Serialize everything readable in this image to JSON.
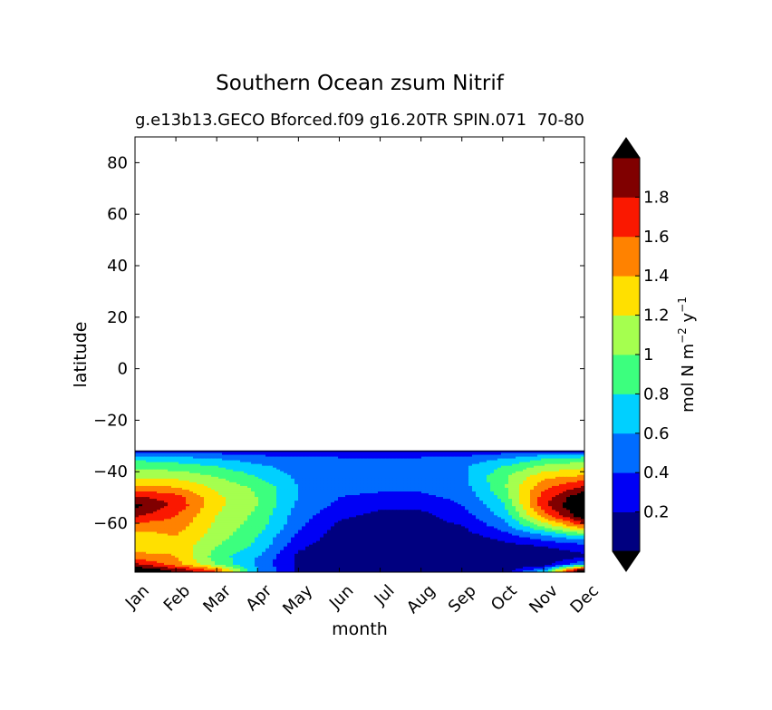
{
  "chart_data": {
    "type": "contourf",
    "title": "Southern Ocean zsum Nitrif",
    "subtitle_left": "g.e13b13.GECO Bforced.f09 g16.20TR SPIN.071",
    "subtitle_right": "70-80",
    "xlabel": "month",
    "ylabel": "latitude",
    "x_categories": [
      "Jan",
      "Feb",
      "Mar",
      "Apr",
      "May",
      "Jun",
      "Jul",
      "Aug",
      "Sep",
      "Oct",
      "Nov",
      "Dec"
    ],
    "xlim": [
      0,
      11
    ],
    "ylim": [
      -79,
      90
    ],
    "y_ticks": [
      80,
      60,
      40,
      20,
      0,
      -20,
      -40,
      -60
    ],
    "y_tick_labels": [
      "80",
      "60",
      "40",
      "20",
      "0",
      "−20",
      "−40",
      "−60"
    ],
    "data_lat_range": [
      -79,
      -32
    ],
    "colorbar": {
      "label": "mol N m",
      "label_exp1": "−2",
      "label_mid": " y",
      "label_exp2": "−1",
      "levels": [
        0,
        0.2,
        0.4,
        0.6,
        0.8,
        1.0,
        1.2,
        1.4,
        1.6,
        1.8,
        2.0
      ],
      "tick_values": [
        0.2,
        0.4,
        0.6,
        0.8,
        1.0,
        1.2,
        1.4,
        1.6,
        1.8
      ],
      "tick_labels": [
        "0.2",
        "0.4",
        "0.6",
        "0.8",
        "1",
        "1.2",
        "1.4",
        "1.6",
        "1.8"
      ],
      "colors": [
        "#000080",
        "#0000f5",
        "#006cff",
        "#00d0ff",
        "#3cff7e",
        "#a5ff4f",
        "#ffe000",
        "#ff8200",
        "#fa1800",
        "#800000"
      ],
      "extend_low_color": "#000000",
      "extend_high_color": "#000000"
    },
    "field": {
      "description": "zonal-mean Nitrif value (mol N m-2 y-1) per month (columns Jan..Dec) per latitude (rows)",
      "lat": [
        -32,
        -33,
        -35,
        -38,
        -42,
        -46,
        -50,
        -53,
        -57,
        -61,
        -65,
        -69,
        -73,
        -76,
        -78,
        -79
      ],
      "values": [
        [
          0.3,
          0.3,
          0.3,
          0.3,
          0.3,
          0.3,
          0.3,
          0.3,
          0.3,
          0.3,
          0.3,
          0.3
        ],
        [
          0.5,
          0.45,
          0.4,
          0.35,
          0.3,
          0.25,
          0.25,
          0.25,
          0.3,
          0.4,
          0.5,
          0.55
        ],
        [
          0.75,
          0.7,
          0.6,
          0.5,
          0.45,
          0.45,
          0.45,
          0.45,
          0.5,
          0.6,
          0.8,
          0.9
        ],
        [
          0.95,
          0.9,
          0.8,
          0.65,
          0.5,
          0.45,
          0.45,
          0.45,
          0.55,
          0.8,
          1.05,
          1.15
        ],
        [
          1.15,
          1.15,
          1.0,
          0.8,
          0.55,
          0.45,
          0.45,
          0.45,
          0.55,
          0.95,
          1.35,
          1.45
        ],
        [
          1.45,
          1.4,
          1.15,
          0.95,
          0.6,
          0.45,
          0.45,
          0.45,
          0.5,
          0.95,
          1.55,
          1.85
        ],
        [
          1.85,
          1.7,
          1.25,
          1.0,
          0.6,
          0.4,
          0.35,
          0.35,
          0.45,
          0.85,
          1.7,
          2.2
        ],
        [
          2.05,
          1.75,
          1.25,
          1.0,
          0.55,
          0.35,
          0.25,
          0.25,
          0.4,
          0.75,
          1.75,
          2.3
        ],
        [
          1.85,
          1.6,
          1.2,
          0.95,
          0.5,
          0.25,
          0.15,
          0.15,
          0.3,
          0.65,
          1.5,
          2.2
        ],
        [
          1.5,
          1.5,
          1.15,
          0.9,
          0.45,
          0.15,
          0.05,
          0.1,
          0.2,
          0.5,
          1.05,
          1.6
        ],
        [
          1.3,
          1.4,
          1.1,
          0.8,
          0.35,
          0.1,
          0.05,
          0.05,
          0.1,
          0.3,
          0.55,
          0.8
        ],
        [
          1.25,
          1.35,
          1.0,
          0.75,
          0.25,
          0.05,
          0.05,
          0.05,
          0.05,
          0.1,
          0.2,
          0.3
        ],
        [
          1.5,
          1.4,
          0.9,
          0.6,
          0.15,
          0.05,
          0.05,
          0.05,
          0.05,
          0.05,
          0.05,
          0.15
        ],
        [
          1.85,
          1.5,
          1.0,
          0.55,
          0.15,
          0.05,
          0.05,
          0.05,
          0.05,
          0.05,
          0.1,
          0.6
        ],
        [
          2.2,
          1.9,
          1.5,
          0.6,
          0.15,
          0.05,
          0.05,
          0.05,
          0.05,
          0.05,
          0.5,
          2.1
        ],
        [
          2.4,
          2.0,
          1.6,
          0.6,
          0.15,
          0.05,
          0.05,
          0.05,
          0.05,
          0.1,
          0.8,
          2.3
        ]
      ]
    }
  }
}
